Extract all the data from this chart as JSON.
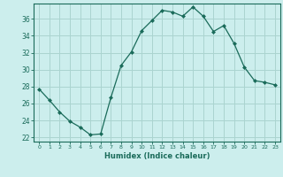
{
  "x": [
    0,
    1,
    2,
    3,
    4,
    5,
    6,
    7,
    8,
    9,
    10,
    11,
    12,
    13,
    14,
    15,
    16,
    17,
    18,
    19,
    20,
    21,
    22,
    23
  ],
  "y": [
    27.7,
    26.4,
    25.0,
    23.9,
    23.2,
    22.3,
    22.4,
    26.7,
    30.5,
    32.1,
    34.6,
    35.8,
    37.0,
    36.8,
    36.3,
    37.4,
    36.3,
    34.5,
    35.2,
    33.1,
    30.3,
    28.7,
    28.5,
    28.2
  ],
  "line_color": "#1a6b5a",
  "marker": "D",
  "marker_size": 2,
  "bg_color": "#cceeed",
  "grid_color": "#aad4d0",
  "xlabel": "Humidex (Indice chaleur)",
  "xlim": [
    -0.5,
    23.5
  ],
  "ylim": [
    21.5,
    37.8
  ],
  "yticks": [
    22,
    24,
    26,
    28,
    30,
    32,
    34,
    36
  ],
  "xticks": [
    0,
    1,
    2,
    3,
    4,
    5,
    6,
    7,
    8,
    9,
    10,
    11,
    12,
    13,
    14,
    15,
    16,
    17,
    18,
    19,
    20,
    21,
    22,
    23
  ]
}
